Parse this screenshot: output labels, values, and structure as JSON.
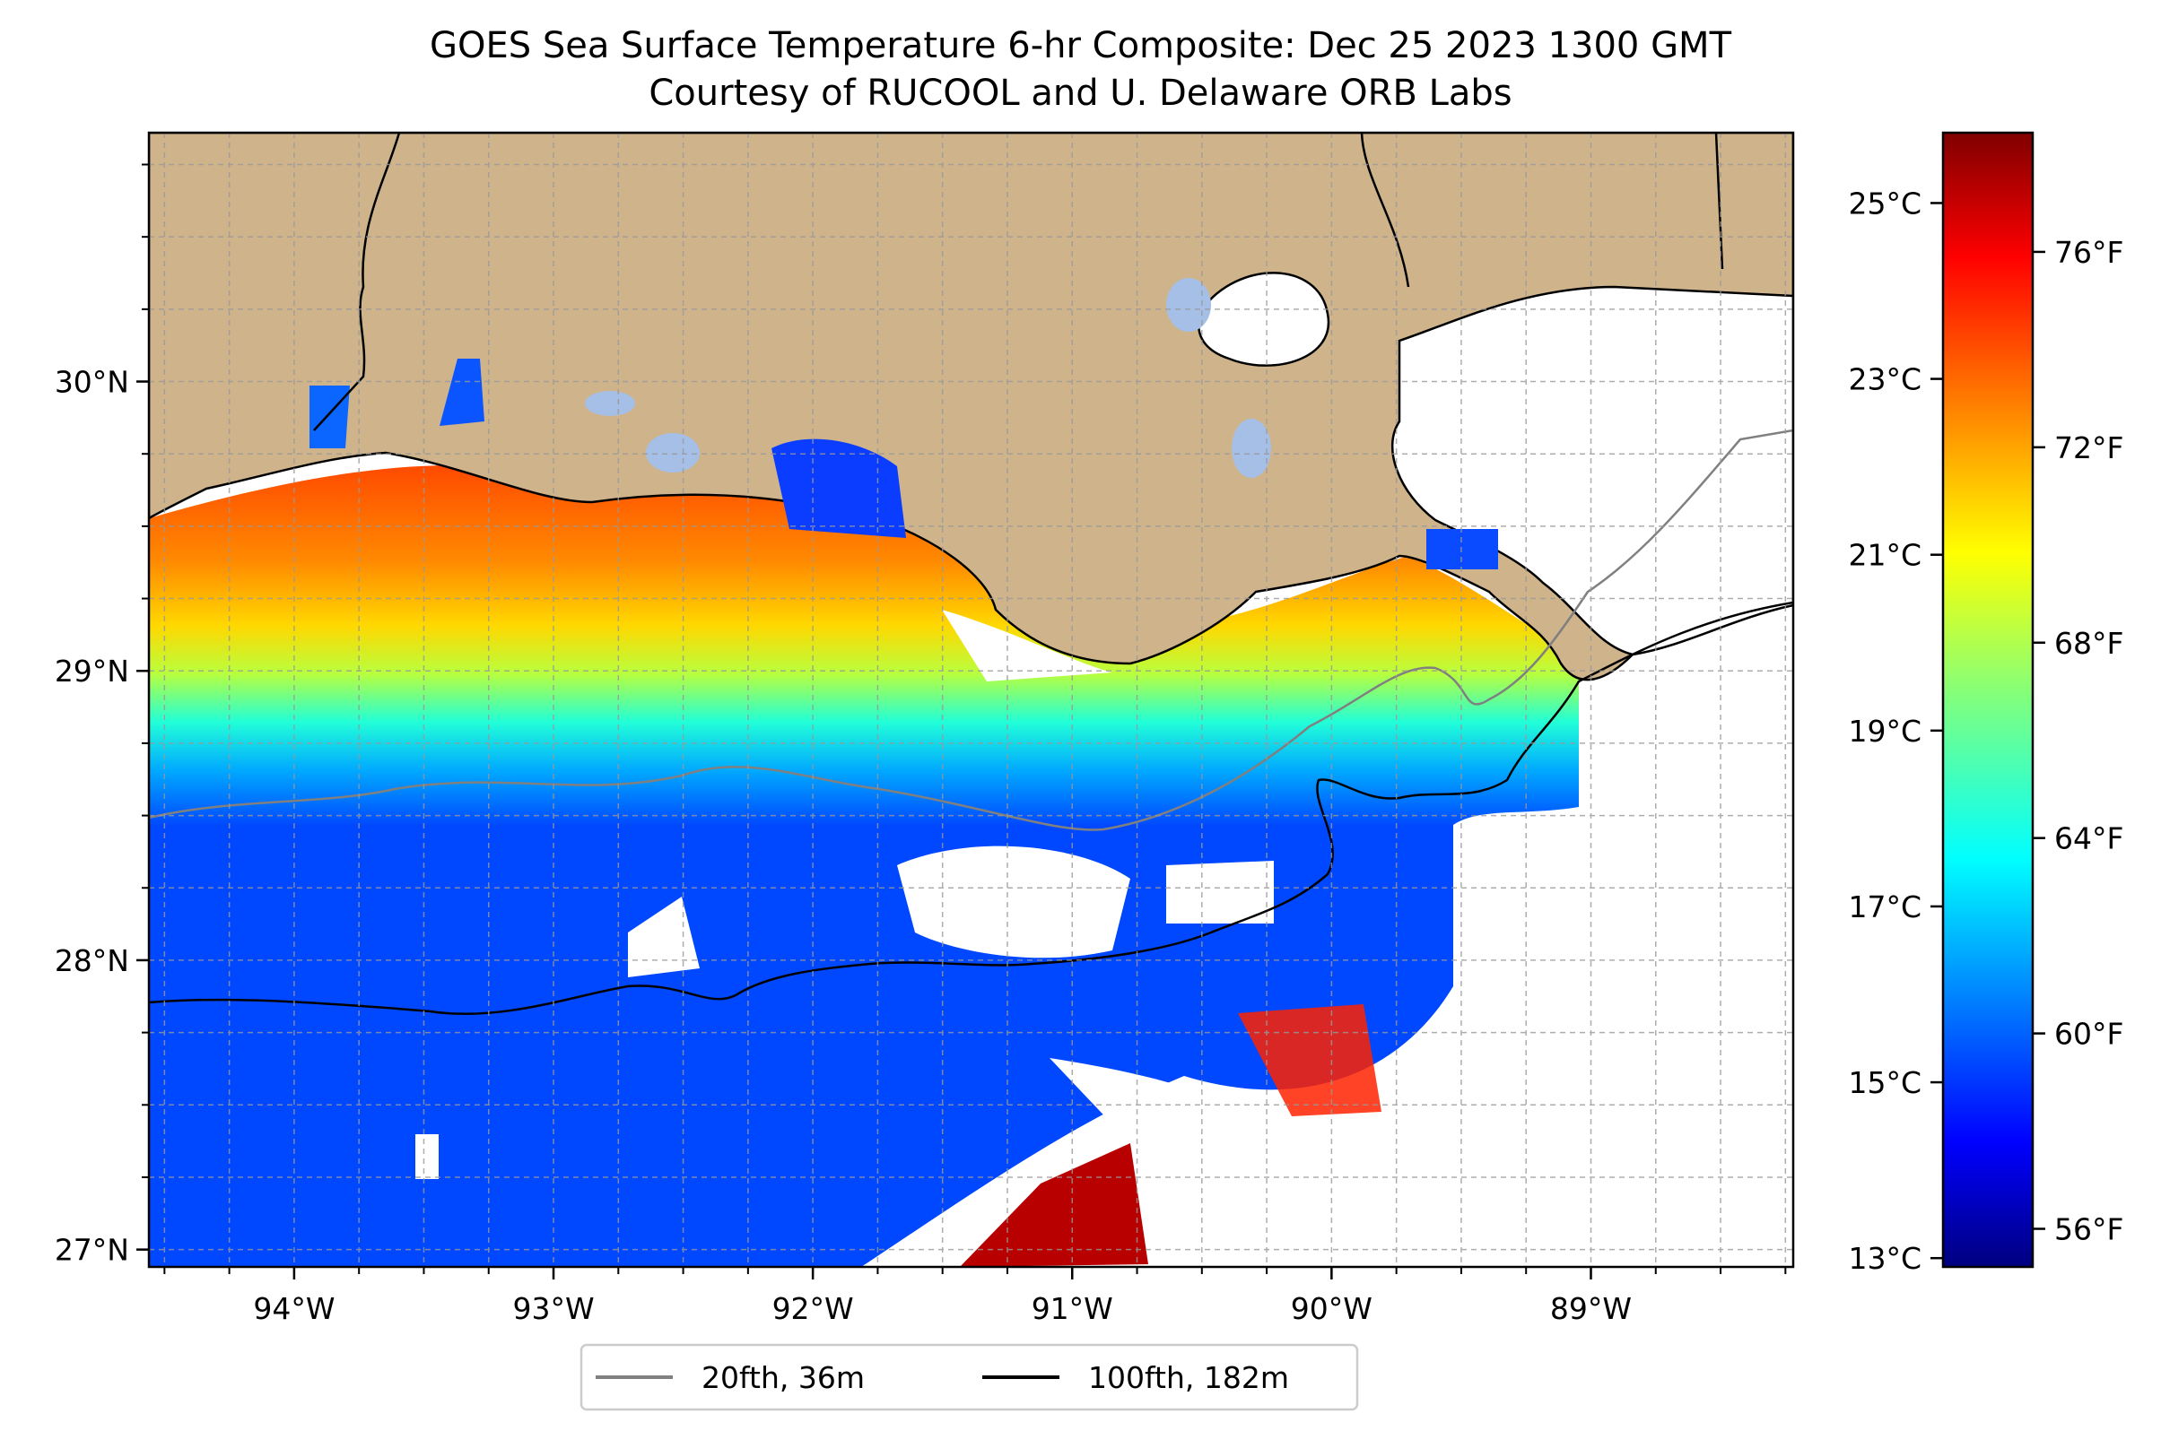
{
  "title": {
    "line1": "GOES Sea Surface Temperature 6-hr Composite: Dec 25 2023 1300 GMT",
    "line2": "Courtesy of RUCOOL and U. Delaware ORB Labs"
  },
  "map": {
    "lon_range": [
      -94.56,
      -88.22
    ],
    "lat_range": [
      26.94,
      30.86
    ],
    "lat_ticks": [
      {
        "value": 30,
        "label": "30°N"
      },
      {
        "value": 29,
        "label": "29°N"
      },
      {
        "value": 28,
        "label": "28°N"
      },
      {
        "value": 27,
        "label": "27°N"
      }
    ],
    "lon_ticks": [
      {
        "value": -94,
        "label": "94°W"
      },
      {
        "value": -93,
        "label": "93°W"
      },
      {
        "value": -92,
        "label": "92°W"
      },
      {
        "value": -91,
        "label": "91°W"
      },
      {
        "value": -90,
        "label": "90°W"
      },
      {
        "value": -89,
        "label": "89°W"
      }
    ],
    "land_color": "#cfb38b",
    "lake_color": "#a5bfe6",
    "gridlines": "dashed"
  },
  "colorbar": {
    "celsius_ticks": [
      {
        "value": 25,
        "label": "25°C"
      },
      {
        "value": 23,
        "label": "23°C"
      },
      {
        "value": 21,
        "label": "21°C"
      },
      {
        "value": 19,
        "label": "19°C"
      },
      {
        "value": 17,
        "label": "17°C"
      },
      {
        "value": 15,
        "label": "15°C"
      },
      {
        "value": 13,
        "label": "13°C"
      }
    ],
    "fahrenheit_ticks": [
      {
        "value": 76,
        "label": "76°F"
      },
      {
        "value": 72,
        "label": "72°F"
      },
      {
        "value": 68,
        "label": "68°F"
      },
      {
        "value": 64,
        "label": "64°F"
      },
      {
        "value": 60,
        "label": "60°F"
      },
      {
        "value": 56,
        "label": "56°F"
      }
    ],
    "range_c": [
      12.9,
      25.8
    ],
    "colormap": "jet"
  },
  "legend": {
    "items": [
      {
        "label": "20fth, 36m",
        "color": "#808080"
      },
      {
        "label": "100fth, 182m",
        "color": "#000000"
      }
    ],
    "placement": "bottom-center"
  }
}
